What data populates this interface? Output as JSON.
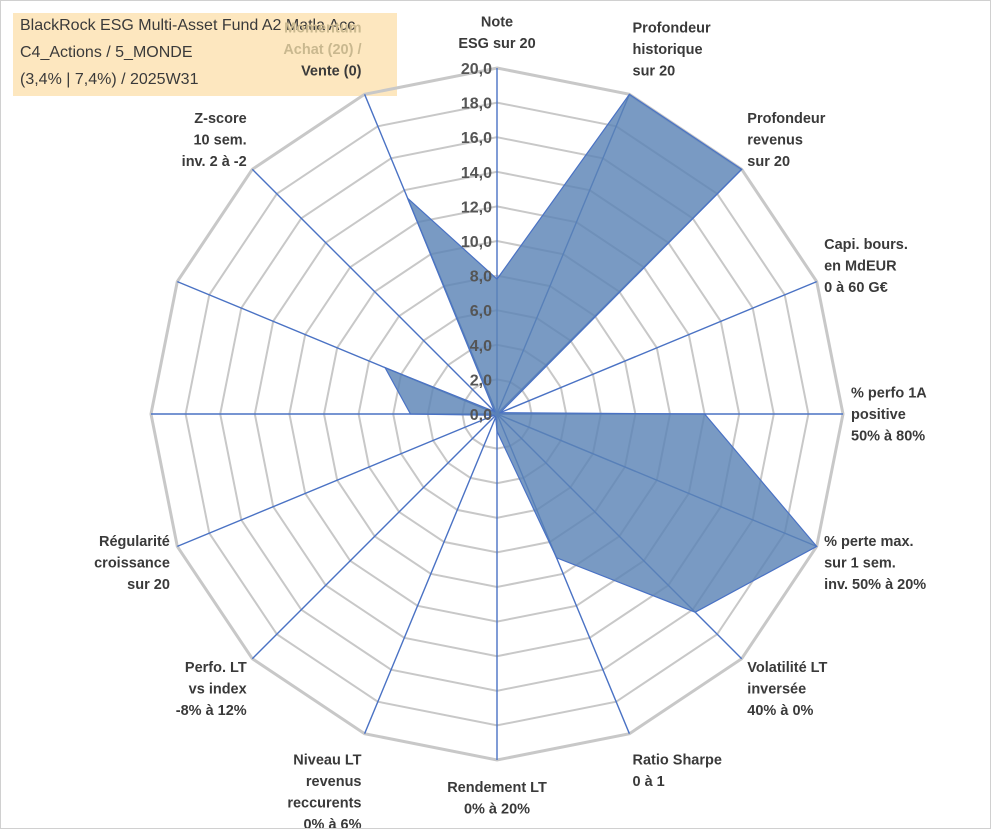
{
  "title_box": {
    "line1": "BlackRock ESG Multi-Asset Fund A2 Matla Acc",
    "line2": "C4_Actions / 5_MONDE",
    "line3": "(3,4% | 7,4%) / 2025W31"
  },
  "chart_data": {
    "type": "radar",
    "title": "BlackRock ESG Multi-Asset Fund A2 Matla Acc",
    "r_range": [
      0,
      20
    ],
    "r_ticks": [
      "0,0",
      "2,0",
      "4,0",
      "6,0",
      "8,0",
      "10,0",
      "12,0",
      "14,0",
      "16,0",
      "18,0",
      "20,0"
    ],
    "grid": true,
    "fill_color": "#5b84b6",
    "line_color": "#4a72c4",
    "grid_color": "#c8c8c8",
    "axes": [
      {
        "label": [
          "Note",
          "ESG sur 20"
        ],
        "value": 7.8
      },
      {
        "label": [
          "Profondeur",
          "historique",
          "sur 20"
        ],
        "value": 20.0
      },
      {
        "label": [
          "Profondeur",
          "revenus",
          "sur 20"
        ],
        "value": 20.0
      },
      {
        "label": [
          "Capi. bours.",
          "en MdEUR",
          "0 à 60 G€"
        ],
        "value": 0.2
      },
      {
        "label": [
          "% perfo 1A",
          "positive",
          "50% à 80%"
        ],
        "value": 12.0
      },
      {
        "label": [
          "% perte max.",
          "sur 1 sem.",
          "inv. 50% à 20%"
        ],
        "value": 20.0
      },
      {
        "label": [
          "Volatilité LT",
          "inversée",
          "40% à 0%"
        ],
        "value": 16.2
      },
      {
        "label": [
          "Ratio Sharpe",
          "0 à 1"
        ],
        "value": 9.0
      },
      {
        "label": [
          "Rendement LT",
          "0% à 20%"
        ],
        "value": 1.0
      },
      {
        "label": [
          "Niveau LT",
          "revenus",
          "reccurents",
          "0% à 6%"
        ],
        "value": 0.2
      },
      {
        "label": [
          "Perfo. LT",
          "vs index",
          "-8% à 12%"
        ],
        "value": 0.2
      },
      {
        "label": [
          "Régularité",
          "croissance",
          "sur 20"
        ],
        "value": 0.2
      },
      {
        "label": [
          "Z-score",
          "10 sem.",
          "inv. 2 à -2"
        ],
        "value": 0.2
      },
      {
        "label": [
          "Momentum",
          "Achat (20) /",
          "Vente (0)"
        ],
        "value": 13.5
      }
    ],
    "extra_spokes": [
      {
        "label": [],
        "value": 5.0
      },
      {
        "label": [],
        "value": 7.0
      }
    ]
  }
}
